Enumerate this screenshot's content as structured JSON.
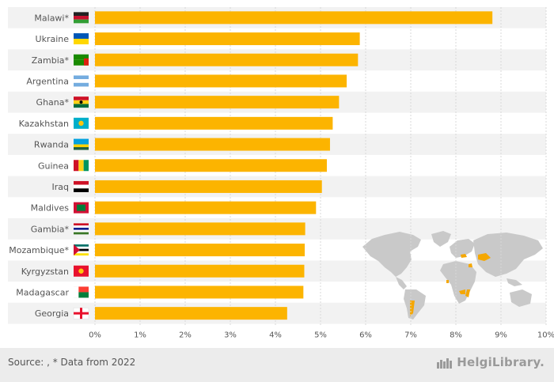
{
  "chart_data": {
    "type": "bar",
    "orientation": "horizontal",
    "categories": [
      "Malawi*",
      "Ukraine",
      "Zambia*",
      "Argentina",
      "Ghana*",
      "Kazakhstan",
      "Rwanda",
      "Guinea",
      "Iraq",
      "Maldives",
      "Gambia*",
      "Mozambique*",
      "Kyrgyzstan",
      "Madagascar",
      "Georgia"
    ],
    "values": [
      8.81,
      5.87,
      5.83,
      5.58,
      5.41,
      5.27,
      5.21,
      5.14,
      5.03,
      4.9,
      4.66,
      4.65,
      4.64,
      4.62,
      4.26
    ],
    "xlim": [
      0,
      10
    ],
    "ticks": [
      "0%",
      "1%",
      "2%",
      "3%",
      "4%",
      "5%",
      "6%",
      "7%",
      "8%",
      "9%",
      "10%"
    ],
    "bar_color": "#fcb400",
    "highlight_color": "#f5a700",
    "map_color": "#c9c9c9",
    "title": "",
    "xlabel": "",
    "ylabel": ""
  },
  "flags": [
    {
      "name": "malawi-flag",
      "bands": [
        "#222222",
        "#c8102e",
        "#339e35"
      ]
    },
    {
      "name": "ukraine-flag",
      "bands": [
        "#0057b7",
        "#ffd700"
      ]
    },
    {
      "name": "zambia-flag",
      "bands": [
        "#198a00",
        "#198a00"
      ]
    },
    {
      "name": "argentina-flag",
      "bands": [
        "#74acdf",
        "#ffffff",
        "#74acdf"
      ]
    },
    {
      "name": "ghana-flag",
      "bands": [
        "#ce1126",
        "#fcd116",
        "#006b3f"
      ]
    },
    {
      "name": "kazakhstan-flag",
      "bands": [
        "#00afca"
      ]
    },
    {
      "name": "rwanda-flag",
      "bands": [
        "#00a1de",
        "#00a1de",
        "#fad201",
        "#20603d"
      ]
    },
    {
      "name": "guinea-flag",
      "bands": [
        "#ce1126",
        "#fcd116",
        "#009460"
      ],
      "vertical": true
    },
    {
      "name": "iraq-flag",
      "bands": [
        "#ce1126",
        "#ffffff",
        "#000000"
      ]
    },
    {
      "name": "maldives-flag",
      "bands": [
        "#d21034"
      ]
    },
    {
      "name": "gambia-flag",
      "bands": [
        "#ce1126",
        "#ffffff",
        "#0c1c8c",
        "#ffffff",
        "#3a7728"
      ]
    },
    {
      "name": "mozambique-flag",
      "bands": [
        "#007168",
        "#ffffff",
        "#000000",
        "#ffffff",
        "#fce100"
      ]
    },
    {
      "name": "kyrgyzstan-flag",
      "bands": [
        "#e8112d"
      ]
    },
    {
      "name": "madagascar-flag",
      "bands": [
        "#fc3d32",
        "#007e3a"
      ]
    },
    {
      "name": "georgia-flag",
      "bands": [
        "#ffffff"
      ]
    }
  ],
  "footer": {
    "source": "Source:  , * Data from 2022",
    "brand": "HelgiLibrary."
  }
}
